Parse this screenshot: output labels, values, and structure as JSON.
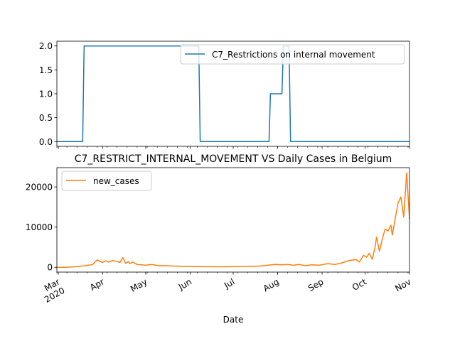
{
  "chart_data": [
    {
      "type": "line",
      "title": "",
      "xlabel": "",
      "ylabel": "",
      "ylim": [
        -0.1,
        2.1
      ],
      "y_ticks": [
        "0.0",
        "0.5",
        "1.0",
        "1.5",
        "2.0"
      ],
      "y_tick_values": [
        0,
        0.5,
        1.0,
        1.5,
        2.0
      ],
      "legend_position": "upper right",
      "series": [
        {
          "name": "C7_Restrictions on internal movement",
          "color": "#1f77b4",
          "x": [
            "2020-02-29",
            "2020-03-18",
            "2020-03-19",
            "2020-06-07",
            "2020-06-08",
            "2020-07-26",
            "2020-07-27",
            "2020-08-04",
            "2020-08-05",
            "2020-08-09",
            "2020-08-10",
            "2020-11-01"
          ],
          "y": [
            0,
            0,
            2,
            2,
            0,
            0,
            1,
            1,
            2,
            2,
            0,
            0
          ]
        }
      ]
    },
    {
      "type": "line",
      "title": "C7_RESTRICT_INTERNAL_MOVEMENT VS Daily Cases in Belgium",
      "xlabel": "Date",
      "ylabel": "",
      "ylim": [
        -1200,
        24800
      ],
      "y_ticks": [
        "0",
        "10000",
        "20000"
      ],
      "y_tick_values": [
        0,
        10000,
        20000
      ],
      "x_ticks": [
        "Mar\n2020",
        "Apr",
        "May",
        "Jun",
        "Jul",
        "Aug",
        "Sep",
        "Oct",
        "Nov"
      ],
      "legend_position": "upper left",
      "series": [
        {
          "name": "new_cases",
          "color": "#ff7f0e",
          "x": [
            "2020-02-29",
            "2020-03-05",
            "2020-03-10",
            "2020-03-15",
            "2020-03-20",
            "2020-03-25",
            "2020-03-28",
            "2020-04-01",
            "2020-04-03",
            "2020-04-05",
            "2020-04-08",
            "2020-04-10",
            "2020-04-13",
            "2020-04-15",
            "2020-04-17",
            "2020-04-19",
            "2020-04-20",
            "2020-04-22",
            "2020-04-25",
            "2020-04-28",
            "2020-05-01",
            "2020-05-05",
            "2020-05-10",
            "2020-05-15",
            "2020-05-20",
            "2020-05-25",
            "2020-06-01",
            "2020-06-10",
            "2020-06-20",
            "2020-07-01",
            "2020-07-10",
            "2020-07-20",
            "2020-07-25",
            "2020-07-30",
            "2020-08-04",
            "2020-08-08",
            "2020-08-12",
            "2020-08-16",
            "2020-08-20",
            "2020-08-25",
            "2020-08-30",
            "2020-09-05",
            "2020-09-10",
            "2020-09-15",
            "2020-09-20",
            "2020-09-25",
            "2020-09-27",
            "2020-09-30",
            "2020-10-02",
            "2020-10-04",
            "2020-10-06",
            "2020-10-08",
            "2020-10-09",
            "2020-10-11",
            "2020-10-13",
            "2020-10-15",
            "2020-10-17",
            "2020-10-19",
            "2020-10-20",
            "2020-10-22",
            "2020-10-24",
            "2020-10-26",
            "2020-10-28",
            "2020-10-30",
            "2020-11-01"
          ],
          "y": [
            0,
            10,
            50,
            200,
            400,
            700,
            1800,
            1200,
            1600,
            1300,
            1700,
            1500,
            1200,
            2400,
            1000,
            1400,
            900,
            1300,
            700,
            600,
            500,
            700,
            400,
            400,
            300,
            250,
            200,
            150,
            120,
            150,
            200,
            300,
            500,
            700,
            600,
            700,
            500,
            700,
            400,
            600,
            500,
            900,
            700,
            1100,
            1700,
            1900,
            1300,
            3000,
            2500,
            3500,
            2000,
            5000,
            7500,
            4000,
            7000,
            9500,
            9000,
            10500,
            8000,
            12000,
            16000,
            17500,
            12500,
            23500,
            12000
          ]
        }
      ]
    }
  ]
}
